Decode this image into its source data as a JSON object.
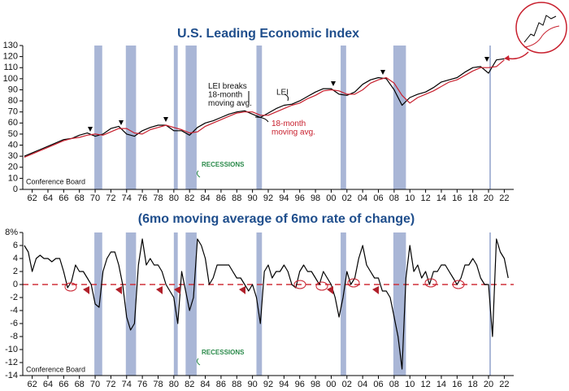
{
  "chart_data": [
    {
      "type": "line",
      "title": "U.S. Leading Economic Index",
      "source": "Conference Board",
      "recessions_label": "RECESSIONS",
      "annotations": [
        "LEI breaks 18-month moving avg."
      ],
      "recessions": [
        [
          1969.9,
          1970.9
        ],
        [
          1973.9,
          1975.2
        ],
        [
          1980.0,
          1980.5
        ],
        [
          1981.5,
          1982.9
        ],
        [
          1990.5,
          1991.2
        ],
        [
          2001.2,
          2001.9
        ],
        [
          2007.9,
          2009.5
        ],
        [
          2020.1,
          2020.3
        ]
      ],
      "x": [
        1961,
        1962,
        1963,
        1964,
        1965,
        1966,
        1967,
        1968,
        1969,
        1970,
        1971,
        1972,
        1973,
        1974,
        1975,
        1976,
        1977,
        1978,
        1979,
        1980,
        1981,
        1982,
        1983,
        1984,
        1985,
        1986,
        1987,
        1988,
        1989,
        1990,
        1991,
        1992,
        1993,
        1994,
        1995,
        1996,
        1997,
        1998,
        1999,
        2000,
        2001,
        2002,
        2003,
        2004,
        2005,
        2006,
        2007,
        2008,
        2009,
        2010,
        2011,
        2012,
        2013,
        2014,
        2015,
        2016,
        2017,
        2018,
        2019,
        2020,
        2021,
        2022
      ],
      "series": [
        {
          "name": "LEI",
          "color": "#000000",
          "values": [
            30,
            33,
            36,
            39,
            42,
            45,
            46,
            49,
            51,
            48,
            50,
            55,
            57,
            50,
            48,
            53,
            56,
            58,
            58,
            53,
            53,
            49,
            56,
            60,
            62,
            65,
            68,
            70,
            71,
            68,
            65,
            69,
            73,
            76,
            77,
            80,
            84,
            88,
            91,
            91,
            86,
            85,
            88,
            95,
            99,
            101,
            100,
            90,
            76,
            83,
            86,
            88,
            92,
            97,
            99,
            101,
            106,
            110,
            111,
            105,
            117,
            118
          ]
        },
        {
          "name": "18-month moving avg.",
          "color": "#c8202e",
          "values": [
            29,
            32,
            35,
            38,
            41,
            44,
            46,
            47,
            49,
            50,
            49,
            52,
            55,
            55,
            51,
            50,
            54,
            56,
            58,
            56,
            54,
            51,
            52,
            57,
            60,
            63,
            66,
            69,
            70,
            70,
            67,
            67,
            70,
            73,
            76,
            78,
            82,
            85,
            89,
            90,
            89,
            86,
            86,
            90,
            96,
            99,
            101,
            96,
            85,
            78,
            83,
            86,
            89,
            93,
            97,
            99,
            103,
            107,
            110,
            110,
            111,
            117
          ]
        }
      ],
      "xlim": [
        1960.8,
        2023.2
      ],
      "xticks": [
        {
          "value": 1962,
          "label": "62"
        },
        {
          "value": 1964,
          "label": "64"
        },
        {
          "value": 1966,
          "label": "66"
        },
        {
          "value": 1968,
          "label": "68"
        },
        {
          "value": 1970,
          "label": "70"
        },
        {
          "value": 1972,
          "label": "72"
        },
        {
          "value": 1974,
          "label": "74"
        },
        {
          "value": 1976,
          "label": "76"
        },
        {
          "value": 1978,
          "label": "78"
        },
        {
          "value": 1980,
          "label": "80"
        },
        {
          "value": 1982,
          "label": "82"
        },
        {
          "value": 1984,
          "label": "84"
        },
        {
          "value": 1986,
          "label": "86"
        },
        {
          "value": 1988,
          "label": "88"
        },
        {
          "value": 1990,
          "label": "90"
        },
        {
          "value": 1992,
          "label": "92"
        },
        {
          "value": 1994,
          "label": "94"
        },
        {
          "value": 1996,
          "label": "96"
        },
        {
          "value": 1998,
          "label": "98"
        },
        {
          "value": 2000,
          "label": "00"
        },
        {
          "value": 2002,
          "label": "02"
        },
        {
          "value": 2004,
          "label": "04"
        },
        {
          "value": 2006,
          "label": "06"
        },
        {
          "value": 2008,
          "label": "08"
        },
        {
          "value": 2010,
          "label": "10"
        },
        {
          "value": 2012,
          "label": "12"
        },
        {
          "value": 2014,
          "label": "14"
        },
        {
          "value": 2016,
          "label": "16"
        },
        {
          "value": 2018,
          "label": "18"
        },
        {
          "value": 2020,
          "label": "20"
        },
        {
          "value": 2022,
          "label": "22"
        }
      ],
      "ylim": [
        0,
        130
      ],
      "yticks": [
        0,
        10,
        20,
        30,
        40,
        50,
        60,
        70,
        80,
        90,
        100,
        110,
        120,
        130
      ]
    },
    {
      "type": "line",
      "title": "(6mo moving average of 6mo rate of change)",
      "source": "Conference Board",
      "recessions_label": "RECESSIONS",
      "reference_line": 0,
      "recessions": [
        [
          1969.9,
          1970.9
        ],
        [
          1973.9,
          1975.2
        ],
        [
          1980.0,
          1980.5
        ],
        [
          1981.5,
          1982.9
        ],
        [
          1990.5,
          1991.2
        ],
        [
          2001.2,
          2001.9
        ],
        [
          2007.9,
          2009.5
        ],
        [
          2020.1,
          2020.3
        ]
      ],
      "x": [
        1961,
        1961.5,
        1962,
        1962.5,
        1963,
        1963.5,
        1964,
        1964.5,
        1965,
        1965.5,
        1966,
        1966.5,
        1967,
        1967.5,
        1968,
        1968.5,
        1969,
        1969.5,
        1970,
        1970.5,
        1971,
        1971.5,
        1972,
        1972.5,
        1973,
        1973.5,
        1974,
        1974.5,
        1975,
        1975.5,
        1976,
        1976.5,
        1977,
        1977.5,
        1978,
        1978.5,
        1979,
        1979.5,
        1980,
        1980.5,
        1981,
        1981.5,
        1982,
        1982.5,
        1983,
        1983.5,
        1984,
        1984.5,
        1985,
        1985.5,
        1986,
        1986.5,
        1987,
        1987.5,
        1988,
        1988.5,
        1989,
        1989.5,
        1990,
        1990.5,
        1991,
        1991.5,
        1992,
        1992.5,
        1993,
        1993.5,
        1994,
        1994.5,
        1995,
        1995.5,
        1996,
        1996.5,
        1997,
        1997.5,
        1998,
        1998.5,
        1999,
        1999.5,
        2000,
        2000.5,
        2001,
        2001.5,
        2002,
        2002.5,
        2003,
        2003.5,
        2004,
        2004.5,
        2005,
        2005.5,
        2006,
        2006.5,
        2007,
        2007.5,
        2008,
        2008.5,
        2009,
        2009.5,
        2010,
        2010.5,
        2011,
        2011.5,
        2012,
        2012.5,
        2013,
        2013.5,
        2014,
        2014.5,
        2015,
        2015.5,
        2016,
        2016.5,
        2017,
        2017.5,
        2018,
        2018.5,
        2019,
        2019.5,
        2020,
        2020.5,
        2021,
        2021.5,
        2022,
        2022.5
      ],
      "series": [
        {
          "color": "#000000",
          "values": [
            6,
            5,
            2,
            4,
            4.5,
            4,
            4,
            3.5,
            4,
            4,
            2,
            -0.5,
            0.5,
            3,
            2,
            2,
            1,
            0,
            -3,
            -3.5,
            2,
            4,
            5,
            5,
            3,
            0,
            -5,
            -7,
            -6,
            3,
            7,
            3,
            4,
            3,
            3,
            2,
            0,
            -1,
            -2,
            -6,
            2,
            -1,
            -4,
            -2,
            7,
            6,
            4,
            0,
            1,
            3,
            3,
            3,
            3,
            2,
            1,
            1,
            0,
            -1,
            0,
            -2,
            -6,
            2,
            3,
            1,
            2,
            2,
            3,
            2,
            0,
            -0.5,
            2,
            3,
            2,
            2,
            1,
            0,
            2,
            1,
            0,
            -2,
            -5,
            -2,
            2,
            0,
            1,
            4,
            6,
            3,
            2,
            1,
            1,
            -1,
            -1,
            -2,
            -5,
            -8,
            -13,
            1,
            6,
            2,
            3,
            1,
            2,
            0,
            2,
            2,
            3,
            3,
            2,
            1,
            0,
            1,
            3,
            3,
            4,
            3,
            1,
            0,
            0,
            -8,
            7,
            5,
            4,
            1
          ]
        }
      ],
      "xlim": [
        1960.8,
        2023.2
      ],
      "xticks": [
        {
          "value": 1962,
          "label": "62"
        },
        {
          "value": 1964,
          "label": "64"
        },
        {
          "value": 1966,
          "label": "66"
        },
        {
          "value": 1968,
          "label": "68"
        },
        {
          "value": 1970,
          "label": "70"
        },
        {
          "value": 1972,
          "label": "72"
        },
        {
          "value": 1974,
          "label": "74"
        },
        {
          "value": 1976,
          "label": "76"
        },
        {
          "value": 1978,
          "label": "78"
        },
        {
          "value": 1980,
          "label": "80"
        },
        {
          "value": 1982,
          "label": "82"
        },
        {
          "value": 1984,
          "label": "84"
        },
        {
          "value": 1986,
          "label": "86"
        },
        {
          "value": 1988,
          "label": "88"
        },
        {
          "value": 1990,
          "label": "90"
        },
        {
          "value": 1992,
          "label": "92"
        },
        {
          "value": 1994,
          "label": "94"
        },
        {
          "value": 1996,
          "label": "96"
        },
        {
          "value": 1998,
          "label": "98"
        },
        {
          "value": 2000,
          "label": "00"
        },
        {
          "value": 2002,
          "label": "02"
        },
        {
          "value": 2004,
          "label": "04"
        },
        {
          "value": 2006,
          "label": "06"
        },
        {
          "value": 2008,
          "label": "08"
        },
        {
          "value": 2010,
          "label": "10"
        },
        {
          "value": 2012,
          "label": "12"
        },
        {
          "value": 2014,
          "label": "14"
        },
        {
          "value": 2016,
          "label": "16"
        },
        {
          "value": 2018,
          "label": "18"
        },
        {
          "value": 2020,
          "label": "20"
        },
        {
          "value": 2022,
          "label": "22"
        }
      ],
      "ylim": [
        -14,
        8
      ],
      "yticks": [
        {
          "value": 8,
          "label": "8%"
        },
        6,
        4,
        2,
        0,
        -2,
        -4,
        -6,
        -8,
        -10,
        -12,
        -14
      ]
    }
  ]
}
